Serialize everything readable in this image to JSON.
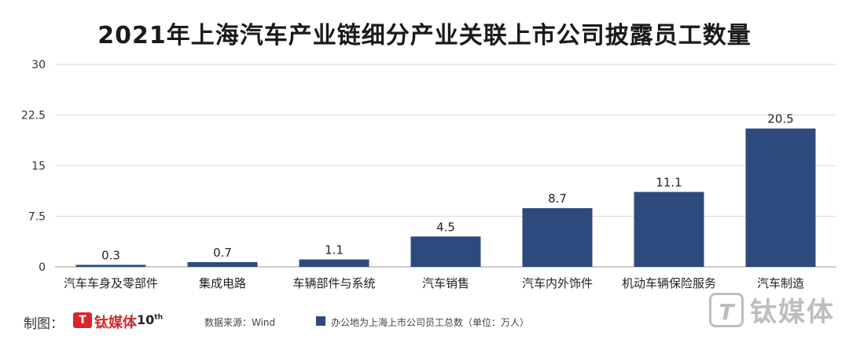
{
  "chart_data": {
    "type": "bar",
    "title": "2021年上海汽车产业链细分产业关联上市公司披露员工数量",
    "categories": [
      "汽车车身及零部件",
      "集成电路",
      "车辆部件与系统",
      "汽车销售",
      "汽车内外饰件",
      "机动车辆保险服务",
      "汽车制造"
    ],
    "series": [
      {
        "name": "办公地为上海上市公司员工总数（单位：万人）",
        "values": [
          0.3,
          0.7,
          1.1,
          4.5,
          8.7,
          11.1,
          20.5
        ]
      }
    ],
    "value_labels": [
      "0.3",
      "0.7",
      "1.1",
      "4.5",
      "8.7",
      "11.1",
      "20.5"
    ],
    "ylim": [
      0,
      30
    ],
    "yticks": [
      0,
      7.5,
      15,
      22.5,
      30
    ],
    "ytick_labels": [
      "0",
      "7.5",
      "15",
      "22.5",
      "30"
    ],
    "grid": true,
    "legend_position": "bottom",
    "colors": {
      "bar": "#2e4a7d",
      "grid": "#d9d9d9",
      "axis": "#999999"
    }
  },
  "footer": {
    "credit_label": "制图：",
    "brand_badge": "T",
    "brand_name": "钛媒体",
    "brand_ten": "10",
    "brand_ten_sup": "th",
    "source": "数据来源：Wind"
  },
  "watermark": {
    "logo": "T",
    "text": "钛媒体"
  }
}
